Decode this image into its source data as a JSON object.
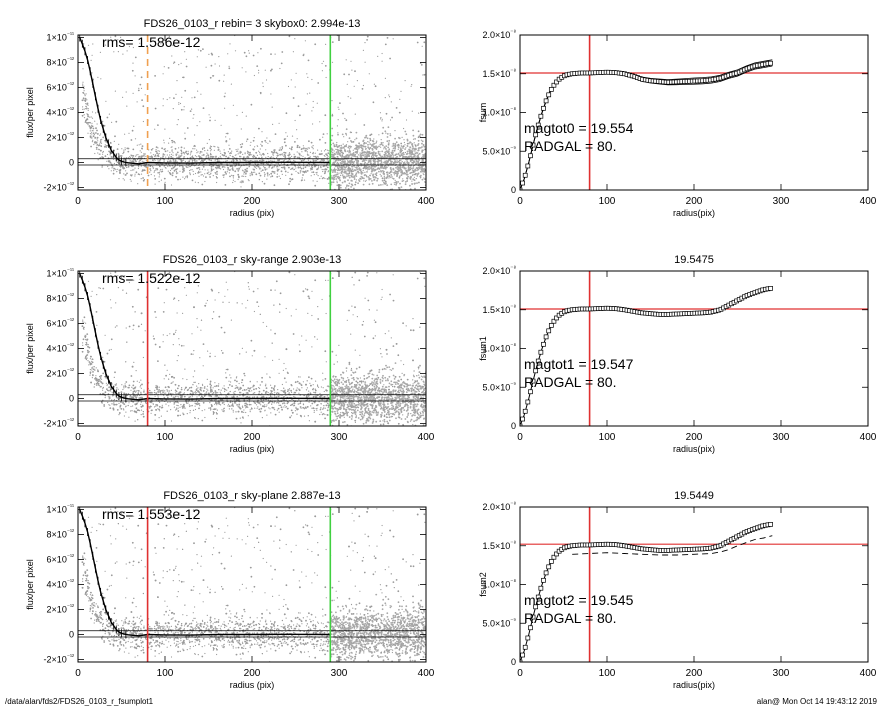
{
  "footer": {
    "left": "/data/alan/fds2/FDS26_0103_r_fsumplot1",
    "right": "alan@  Mon Oct 14 19:43:12 2019"
  },
  "colors": {
    "dots": "#9a9a9a",
    "profile": "#000000",
    "orange_line": "#f0a050",
    "red_line": "#e03030",
    "green_line": "#40d040"
  },
  "chart_data": [
    {
      "type": "scatter",
      "title": "FDS26_0103_r rebin= 3    skybox0:  2.994e-13",
      "xlabel": "radius (pix)",
      "ylabel": "flux/per pixel",
      "xlim": [
        0,
        400
      ],
      "ylim": [
        -2.2e-12,
        1.02e-11
      ],
      "xticks": [
        0,
        100,
        200,
        300,
        400
      ],
      "yticks": [
        -2e-12,
        0,
        2e-12,
        4e-12,
        6e-12,
        8e-12,
        1e-11
      ],
      "ytick_labels": [
        "-2×10⁻¹²",
        "0",
        "2×10⁻¹²",
        "4×10⁻¹²",
        "6×10⁻¹²",
        "8×10⁻¹²",
        "1×10⁻¹¹"
      ],
      "annotation": "rms= 1.586e-12",
      "vlines": [
        {
          "x": 80,
          "color": "orange",
          "style": "dashed"
        },
        {
          "x": 290,
          "color": "green",
          "style": "solid"
        }
      ],
      "hlines": [
        -2e-13,
        3e-13
      ],
      "profile": {
        "x": [
          2,
          5,
          8,
          11,
          14,
          17,
          20,
          23,
          26,
          29,
          32,
          35,
          38,
          41,
          44,
          47,
          50,
          55,
          60,
          70,
          80,
          100,
          130,
          160,
          200,
          240,
          290
        ],
        "y": [
          1e-11,
          9.5e-12,
          8.9e-12,
          8.2e-12,
          7.3e-12,
          6.3e-12,
          5.3e-12,
          4.3e-12,
          3.4e-12,
          2.7e-12,
          2e-12,
          1.5e-12,
          1e-12,
          7e-13,
          4e-13,
          2e-13,
          1e-13,
          0,
          -5e-14,
          -1e-13,
          0,
          -3e-14,
          -5e-14,
          0,
          0,
          2e-14,
          0
        ]
      },
      "scatter_outer_x": 290
    },
    {
      "type": "line",
      "title": "",
      "xlabel": "radius(pix)",
      "ylabel": "fsum",
      "xlim": [
        0,
        400
      ],
      "ylim": [
        0,
        2e-08
      ],
      "xticks": [
        0,
        100,
        200,
        300,
        400
      ],
      "yticks": [
        0,
        5e-09,
        1e-08,
        1.5e-08,
        2e-08
      ],
      "ytick_labels": [
        "0",
        "5.0×10⁻⁹",
        "1.0×10⁻⁸",
        "1.5×10⁻⁸",
        "2.0×10⁻⁸"
      ],
      "annotations": [
        "magtot0 =  19.554",
        "RADGAL =     80."
      ],
      "vline": 80,
      "hline": 1.51e-08,
      "series": {
        "x": [
          0,
          5,
          10,
          15,
          20,
          25,
          30,
          35,
          40,
          45,
          50,
          55,
          60,
          65,
          70,
          80,
          90,
          100,
          110,
          120,
          130,
          140,
          150,
          160,
          170,
          180,
          190,
          200,
          210,
          220,
          230,
          240,
          250,
          260,
          270,
          280,
          290
        ],
        "y": [
          0,
          1.5e-09,
          3.5e-09,
          5.8e-09,
          8e-09,
          9.9e-09,
          1.15e-08,
          1.28e-08,
          1.37e-08,
          1.43e-08,
          1.47e-08,
          1.49e-08,
          1.5e-08,
          1.505e-08,
          1.51e-08,
          1.51e-08,
          1.515e-08,
          1.52e-08,
          1.515e-08,
          1.5e-08,
          1.47e-08,
          1.43e-08,
          1.41e-08,
          1.4e-08,
          1.39e-08,
          1.395e-08,
          1.4e-08,
          1.405e-08,
          1.41e-08,
          1.42e-08,
          1.44e-08,
          1.48e-08,
          1.51e-08,
          1.56e-08,
          1.6e-08,
          1.62e-08,
          1.64e-08
        ]
      },
      "band": 4e-10
    },
    {
      "type": "scatter",
      "title": "FDS26_0103_r sky-range  2.903e-13",
      "xlabel": "radius (pix)",
      "ylabel": "flux/per pixel",
      "xlim": [
        0,
        400
      ],
      "ylim": [
        -2.2e-12,
        1.02e-11
      ],
      "xticks": [
        0,
        100,
        200,
        300,
        400
      ],
      "yticks": [
        -2e-12,
        0,
        2e-12,
        4e-12,
        6e-12,
        8e-12,
        1e-11
      ],
      "ytick_labels": [
        "-2×10⁻¹²",
        "0",
        "2×10⁻¹²",
        "4×10⁻¹²",
        "6×10⁻¹²",
        "8×10⁻¹²",
        "1×10⁻¹¹"
      ],
      "annotation": "rms= 1.522e-12",
      "vlines": [
        {
          "x": 80,
          "color": "red",
          "style": "solid"
        },
        {
          "x": 290,
          "color": "green",
          "style": "solid"
        }
      ],
      "hlines": [
        -2e-13,
        3e-13
      ],
      "profile": {
        "x": [
          2,
          5,
          8,
          11,
          14,
          17,
          20,
          23,
          26,
          29,
          32,
          35,
          38,
          41,
          44,
          47,
          50,
          55,
          60,
          70,
          80,
          100,
          130,
          160,
          200,
          240,
          290
        ],
        "y": [
          1e-11,
          9.5e-12,
          8.9e-12,
          8.2e-12,
          7.3e-12,
          6.3e-12,
          5.3e-12,
          4.3e-12,
          3.4e-12,
          2.7e-12,
          2e-12,
          1.5e-12,
          1e-12,
          7e-13,
          4e-13,
          2e-13,
          1e-13,
          0,
          -5e-14,
          -1e-13,
          0,
          -3e-14,
          -5e-14,
          0,
          0,
          2e-14,
          0
        ]
      },
      "scatter_outer_x": 290
    },
    {
      "type": "line",
      "title": "19.5475",
      "xlabel": "radius(pix)",
      "ylabel": "fsum1",
      "xlim": [
        0,
        400
      ],
      "ylim": [
        0,
        2e-08
      ],
      "xticks": [
        0,
        100,
        200,
        300,
        400
      ],
      "yticks": [
        0,
        5e-09,
        1e-08,
        1.5e-08,
        2e-08
      ],
      "ytick_labels": [
        "0",
        "5.0×10⁻⁹",
        "1.0×10⁻⁸",
        "1.5×10⁻⁸",
        "2.0×10⁻⁸"
      ],
      "annotations": [
        "magtot1 =  19.547",
        "RADGAL =     80."
      ],
      "vline": 80,
      "hline": 1.51e-08,
      "series": {
        "x": [
          0,
          5,
          10,
          15,
          20,
          25,
          30,
          35,
          40,
          45,
          50,
          55,
          60,
          65,
          70,
          80,
          90,
          100,
          110,
          120,
          130,
          140,
          150,
          160,
          170,
          180,
          190,
          200,
          210,
          220,
          230,
          240,
          250,
          260,
          270,
          280,
          290
        ],
        "y": [
          0,
          1.5e-09,
          3.5e-09,
          5.8e-09,
          8e-09,
          9.9e-09,
          1.15e-08,
          1.28e-08,
          1.37e-08,
          1.43e-08,
          1.47e-08,
          1.49e-08,
          1.5e-08,
          1.505e-08,
          1.51e-08,
          1.51e-08,
          1.515e-08,
          1.52e-08,
          1.515e-08,
          1.5e-08,
          1.48e-08,
          1.46e-08,
          1.45e-08,
          1.44e-08,
          1.44e-08,
          1.445e-08,
          1.45e-08,
          1.455e-08,
          1.46e-08,
          1.47e-08,
          1.5e-08,
          1.56e-08,
          1.62e-08,
          1.68e-08,
          1.72e-08,
          1.76e-08,
          1.78e-08
        ]
      },
      "band": 0
    },
    {
      "type": "scatter",
      "title": "FDS26_0103_r sky-plane  2.887e-13",
      "xlabel": "radius (pix)",
      "ylabel": "flux/per pixel",
      "xlim": [
        0,
        400
      ],
      "ylim": [
        -2.2e-12,
        1.02e-11
      ],
      "xticks": [
        0,
        100,
        200,
        300,
        400
      ],
      "yticks": [
        -2e-12,
        0,
        2e-12,
        4e-12,
        6e-12,
        8e-12,
        1e-11
      ],
      "ytick_labels": [
        "-2×10⁻¹²",
        "0",
        "2×10⁻¹²",
        "4×10⁻¹²",
        "6×10⁻¹²",
        "8×10⁻¹²",
        "1×10⁻¹¹"
      ],
      "annotation": "rms= 1.553e-12",
      "vlines": [
        {
          "x": 80,
          "color": "red",
          "style": "solid"
        },
        {
          "x": 290,
          "color": "green",
          "style": "solid"
        }
      ],
      "hlines": [
        -2e-13,
        3e-13
      ],
      "profile": {
        "x": [
          2,
          5,
          8,
          11,
          14,
          17,
          20,
          23,
          26,
          29,
          32,
          35,
          38,
          41,
          44,
          47,
          50,
          55,
          60,
          70,
          80,
          100,
          130,
          160,
          200,
          240,
          290
        ],
        "y": [
          1e-11,
          9.5e-12,
          8.9e-12,
          8.2e-12,
          7.3e-12,
          6.3e-12,
          5.3e-12,
          4.3e-12,
          3.4e-12,
          2.7e-12,
          2e-12,
          1.5e-12,
          1e-12,
          7e-13,
          4e-13,
          2e-13,
          1e-13,
          0,
          -5e-14,
          -1e-13,
          0,
          -3e-14,
          -5e-14,
          0,
          0,
          2e-14,
          0
        ]
      },
      "scatter_outer_x": 290
    },
    {
      "type": "line",
      "title": "19.5449",
      "xlabel": "radius(pix)",
      "ylabel": "fsum2",
      "xlim": [
        0,
        400
      ],
      "ylim": [
        0,
        2e-08
      ],
      "xticks": [
        0,
        100,
        200,
        300,
        400
      ],
      "yticks": [
        0,
        5e-09,
        1e-08,
        1.5e-08,
        2e-08
      ],
      "ytick_labels": [
        "0",
        "5.0×10⁻⁹",
        "1.0×10⁻⁸",
        "1.5×10⁻⁸",
        "2.0×10⁻⁸"
      ],
      "annotations": [
        "magtot2 =  19.545",
        "RADGAL =     80."
      ],
      "vline": 80,
      "hline": 1.52e-08,
      "series": {
        "x": [
          0,
          5,
          10,
          15,
          20,
          25,
          30,
          35,
          40,
          45,
          50,
          55,
          60,
          65,
          70,
          80,
          90,
          100,
          110,
          120,
          130,
          140,
          150,
          160,
          170,
          180,
          190,
          200,
          210,
          220,
          230,
          240,
          250,
          260,
          270,
          280,
          290
        ],
        "y": [
          0,
          1.5e-09,
          3.5e-09,
          5.8e-09,
          8e-09,
          9.9e-09,
          1.15e-08,
          1.28e-08,
          1.37e-08,
          1.43e-08,
          1.47e-08,
          1.49e-08,
          1.5e-08,
          1.505e-08,
          1.51e-08,
          1.51e-08,
          1.515e-08,
          1.52e-08,
          1.515e-08,
          1.5e-08,
          1.48e-08,
          1.46e-08,
          1.45e-08,
          1.44e-08,
          1.44e-08,
          1.445e-08,
          1.45e-08,
          1.455e-08,
          1.46e-08,
          1.47e-08,
          1.5e-08,
          1.56e-08,
          1.62e-08,
          1.68e-08,
          1.72e-08,
          1.76e-08,
          1.78e-08
        ]
      },
      "dashed": {
        "x": [
          60,
          80,
          100,
          120,
          140,
          160,
          180,
          200,
          220,
          230,
          240,
          250,
          260,
          270,
          280,
          290
        ],
        "y": [
          1.39e-08,
          1.4e-08,
          1.41e-08,
          1.4e-08,
          1.39e-08,
          1.38e-08,
          1.38e-08,
          1.39e-08,
          1.4e-08,
          1.42e-08,
          1.45e-08,
          1.5e-08,
          1.54e-08,
          1.58e-08,
          1.6e-08,
          1.63e-08
        ]
      },
      "band": 0
    }
  ]
}
